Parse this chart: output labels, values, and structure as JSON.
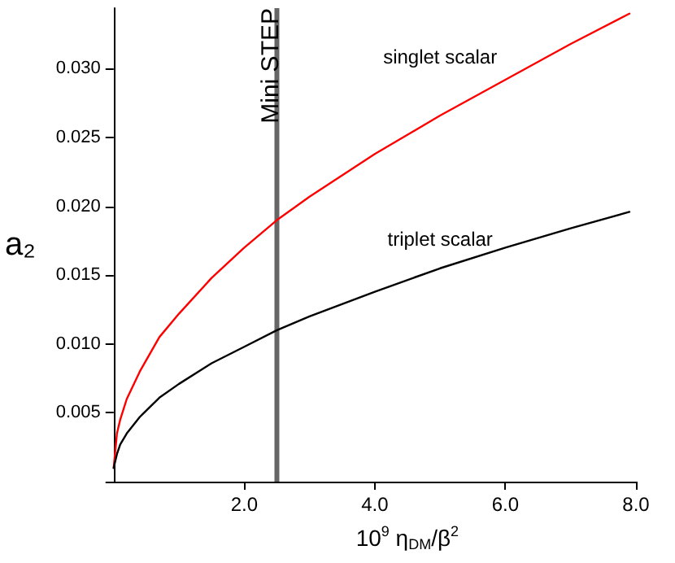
{
  "chart_data": {
    "type": "line",
    "xlabel": "10$^{9}$ η$_{DM}$/β$^{2}$",
    "ylabel": "a₂",
    "xlim": [
      0,
      8
    ],
    "xticks": [
      {
        "value": 2,
        "label": "2.0"
      },
      {
        "value": 4,
        "label": "4.0"
      },
      {
        "value": 6,
        "label": "6.0"
      },
      {
        "value": 8,
        "label": "8.0"
      }
    ],
    "ylim": [
      0,
      0.0344
    ],
    "yticks": [
      {
        "value": 0,
        "label": null
      },
      {
        "value": 0.005,
        "label": "0.005"
      },
      {
        "value": 0.01,
        "label": "0.010"
      },
      {
        "value": 0.015,
        "label": "0.015"
      },
      {
        "value": 0.02,
        "label": "0.020"
      },
      {
        "value": 0.025,
        "label": "0.025"
      },
      {
        "value": 0.03,
        "label": "0.030"
      }
    ],
    "x": [
      0,
      0.05,
      0.1,
      0.2,
      0.4,
      0.7,
      1,
      1.5,
      2,
      2.5,
      3,
      4,
      5,
      6,
      7,
      7.9
    ],
    "series": [
      {
        "name": "singlet scalar",
        "color": "#ff0000",
        "values": [
          0.001,
          0.0035,
          0.0045,
          0.006,
          0.008,
          0.0105,
          0.0122,
          0.0148,
          0.017,
          0.019,
          0.0207,
          0.0238,
          0.0266,
          0.0292,
          0.0318,
          0.034
        ]
      },
      {
        "name": "triplet scalar",
        "color": "#000000",
        "values": [
          0.001,
          0.002,
          0.0027,
          0.0035,
          0.0047,
          0.0061,
          0.0071,
          0.0086,
          0.0098,
          0.011,
          0.012,
          0.0138,
          0.0155,
          0.017,
          0.0184,
          0.0196
        ]
      }
    ],
    "ref_lines": [
      {
        "axis": "x",
        "value": 2.5,
        "label": "Mini STEP",
        "color": "#666666"
      }
    ],
    "grid": false,
    "legend": false,
    "marker": "none",
    "line_style": "solid"
  }
}
